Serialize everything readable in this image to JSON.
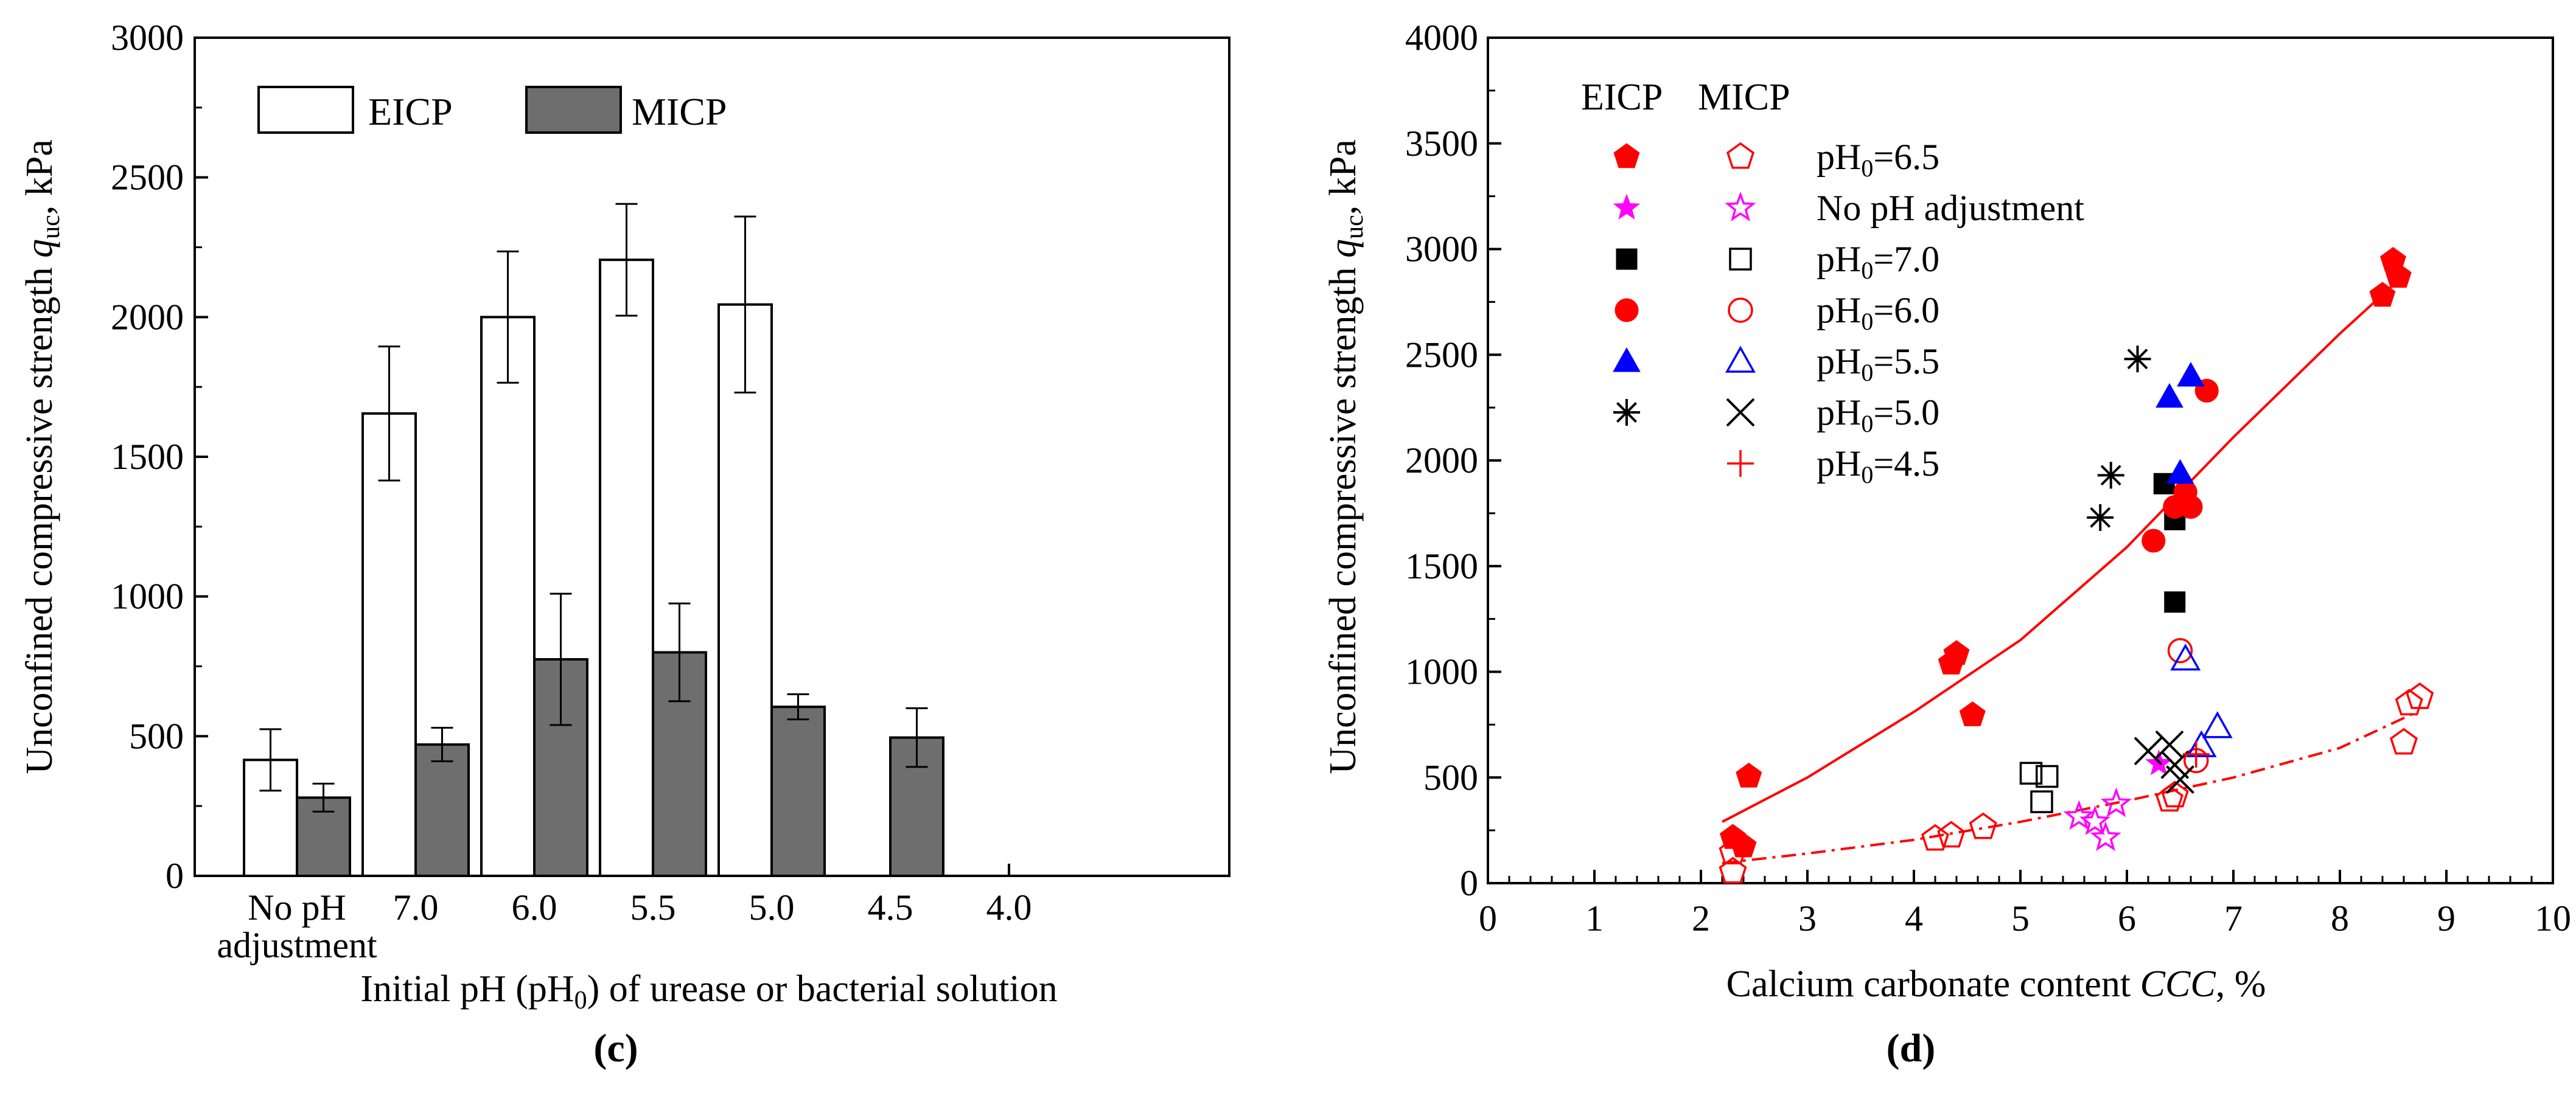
{
  "chart_data": [
    {
      "panel": "(c)",
      "type": "bar",
      "ylabel": "Unconfined compressive strength q_uc, kPa",
      "ylabel_prefix": "Unconfined compressive strength ",
      "ylabel_sym": "q",
      "ylabel_sub": "uc",
      "ylabel_suffix": ", kPa",
      "xlabel": "Initial pH (pH0) of urease or bacterial solution",
      "xlabel_prefix": "Initial pH (pH",
      "xlabel_sub": "0",
      "xlabel_suffix": ") of urease or bacterial solution",
      "ylim": [
        0,
        3000
      ],
      "yticks": [
        0,
        500,
        1000,
        1500,
        2000,
        2500,
        3000
      ],
      "categories": [
        "No pH adjustment",
        "7.0",
        "6.0",
        "5.5",
        "5.0",
        "4.5",
        "4.0"
      ],
      "category_lines": [
        [
          "No pH",
          "adjustment"
        ],
        [
          "7.0"
        ],
        [
          "6.0"
        ],
        [
          "5.5"
        ],
        [
          "5.0"
        ],
        [
          "4.5"
        ],
        [
          "4.0"
        ]
      ],
      "series": [
        {
          "name": "EICP",
          "fill": "#ffffff",
          "values": [
            415,
            1655,
            2000,
            2205,
            2045,
            null,
            null
          ],
          "errors": [
            110,
            240,
            235,
            200,
            315,
            null,
            null
          ]
        },
        {
          "name": "MICP",
          "fill": "#6e6e6e",
          "values": [
            280,
            470,
            775,
            800,
            605,
            495,
            null
          ],
          "errors": [
            50,
            60,
            235,
            175,
            45,
            105,
            null
          ]
        }
      ],
      "legend": [
        "EICP",
        "MICP"
      ],
      "legend_position": "top-left"
    },
    {
      "panel": "(d)",
      "type": "scatter",
      "ylabel": "Unconfined compressive strength q_uc, kPa",
      "ylabel_prefix": "Unconfined compressive strength ",
      "ylabel_sym": "q",
      "ylabel_sub": "uc",
      "ylabel_suffix": ", kPa",
      "xlabel": "Calcium carbonate content CCC, %",
      "xlabel_prefix": "Calcium carbonate content ",
      "xlabel_sym": "CCC",
      "xlabel_suffix": ", %",
      "xlim": [
        0,
        10
      ],
      "ylim": [
        0,
        4000
      ],
      "xticks": [
        0,
        1,
        2,
        3,
        4,
        5,
        6,
        7,
        8,
        9,
        10
      ],
      "yticks": [
        0,
        500,
        1000,
        1500,
        2000,
        2500,
        3000,
        3500,
        4000
      ],
      "legend_headers": [
        "EICP",
        "MICP"
      ],
      "legend_position": "top-left",
      "series": [
        {
          "name": "pH0=6.5",
          "label_prefix": "pH",
          "label_sub": "0",
          "label_suffix": "=6.5",
          "color": "#ff0000",
          "marker": "pentagon",
          "eicp": [
            [
              2.3,
              215
            ],
            [
              2.4,
              175
            ],
            [
              2.45,
              505
            ],
            [
              4.35,
              1040
            ],
            [
              4.4,
              1085
            ],
            [
              4.55,
              795
            ],
            [
              8.4,
              2780
            ],
            [
              8.5,
              2945
            ],
            [
              8.55,
              2870
            ]
          ],
          "micp": [
            [
              2.3,
              145
            ],
            [
              2.3,
              55
            ],
            [
              4.2,
              210
            ],
            [
              4.35,
              225
            ],
            [
              4.65,
              265
            ],
            [
              6.4,
              395
            ],
            [
              6.45,
              415
            ],
            [
              8.6,
              665
            ],
            [
              8.65,
              850
            ],
            [
              8.75,
              880
            ]
          ]
        },
        {
          "name": "No pH adjustment",
          "label_prefix": "No pH adjustment",
          "label_sub": "",
          "label_suffix": "",
          "color": "#ff00ff",
          "marker": "star",
          "eicp": [
            [
              6.3,
              565
            ]
          ],
          "micp": [
            [
              5.55,
              315
            ],
            [
              5.7,
              290
            ],
            [
              5.8,
              215
            ],
            [
              5.9,
              375
            ]
          ]
        },
        {
          "name": "pH0=7.0",
          "label_prefix": "pH",
          "label_sub": "0",
          "label_suffix": "=7.0",
          "color": "#000000",
          "marker": "square",
          "eicp": [
            [
              6.35,
              1890
            ],
            [
              6.45,
              1720
            ],
            [
              6.45,
              1330
            ]
          ],
          "micp": [
            [
              5.1,
              520
            ],
            [
              5.25,
              505
            ],
            [
              5.2,
              385
            ]
          ]
        },
        {
          "name": "pH0=6.0",
          "label_prefix": "pH",
          "label_sub": "0",
          "label_suffix": "=6.0",
          "color": "#ff0000",
          "marker": "circle",
          "eicp": [
            [
              6.25,
              1620
            ],
            [
              6.45,
              1780
            ],
            [
              6.55,
              1850
            ],
            [
              6.6,
              1780
            ],
            [
              6.75,
              2330
            ]
          ],
          "micp": [
            [
              6.5,
              1100
            ],
            [
              6.65,
              580
            ]
          ]
        },
        {
          "name": "pH0=5.5",
          "label_prefix": "pH",
          "label_sub": "0",
          "label_suffix": "=5.5",
          "color": "#0000ff",
          "marker": "triangle",
          "eicp": [
            [
              6.4,
              2300
            ],
            [
              6.6,
              2400
            ],
            [
              6.5,
              1940
            ]
          ],
          "micp": [
            [
              6.55,
              1060
            ],
            [
              6.7,
              650
            ],
            [
              6.85,
              740
            ]
          ]
        },
        {
          "name": "pH0=5.0",
          "label_prefix": "pH",
          "label_sub": "0",
          "label_suffix": "=5.0",
          "color": "#000000",
          "marker": "asterisk",
          "eicp": [
            [
              6.1,
              2480
            ],
            [
              5.85,
              1930
            ],
            [
              5.75,
              1730
            ]
          ],
          "micp": [
            [
              6.2,
              625
            ],
            [
              6.4,
              655
            ],
            [
              6.45,
              560
            ],
            [
              6.5,
              490
            ]
          ]
        },
        {
          "name": "pH0=4.5",
          "label_prefix": "pH",
          "label_sub": "0",
          "label_suffix": "=4.5",
          "color": "#ff0000",
          "marker": "plus",
          "eicp": [],
          "micp": [
            [
              6.65,
              610
            ]
          ]
        }
      ],
      "trend_lines": [
        {
          "name": "EICP trend",
          "style": "solid",
          "color": "#ff0000",
          "points": [
            [
              2.2,
              290
            ],
            [
              3,
              500
            ],
            [
              4,
              810
            ],
            [
              5,
              1150
            ],
            [
              6,
              1590
            ],
            [
              7,
              2110
            ],
            [
              8,
              2600
            ],
            [
              8.5,
              2830
            ]
          ]
        },
        {
          "name": "MICP trend",
          "style": "dash-dot",
          "color": "#ff0000",
          "points": [
            [
              2.2,
              95
            ],
            [
              3,
              140
            ],
            [
              4,
              205
            ],
            [
              5,
              290
            ],
            [
              6,
              390
            ],
            [
              7,
              500
            ],
            [
              8,
              640
            ],
            [
              8.7,
              805
            ]
          ]
        }
      ]
    }
  ],
  "captions": {
    "c": "(c)",
    "d": "(d)"
  }
}
